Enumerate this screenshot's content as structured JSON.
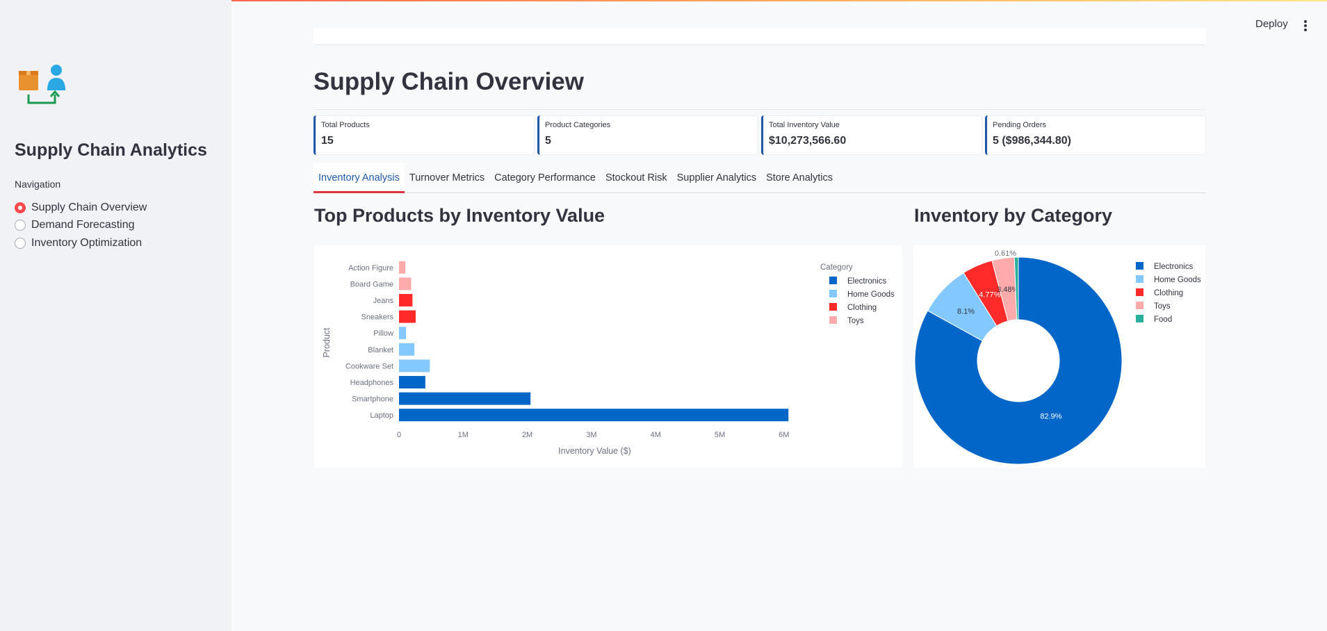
{
  "sidebar": {
    "title": "Supply Chain Analytics",
    "nav_label": "Navigation",
    "nav_items": [
      {
        "label": "Supply Chain Overview",
        "selected": true
      },
      {
        "label": "Demand Forecasting",
        "selected": false
      },
      {
        "label": "Inventory Optimization",
        "selected": false
      }
    ]
  },
  "header": {
    "deploy_label": "Deploy",
    "menu_icon": "kebab-icon"
  },
  "page": {
    "title": "Supply Chain Overview"
  },
  "metrics": [
    {
      "label": "Total Products",
      "value": "15"
    },
    {
      "label": "Product Categories",
      "value": "5"
    },
    {
      "label": "Total Inventory Value",
      "value": "$10,273,566.60"
    },
    {
      "label": "Pending Orders",
      "value": "5 ($986,344.80)"
    }
  ],
  "tabs": [
    {
      "label": "Inventory Analysis",
      "active": true
    },
    {
      "label": "Turnover Metrics",
      "active": false
    },
    {
      "label": "Category Performance",
      "active": false
    },
    {
      "label": "Stockout Risk",
      "active": false
    },
    {
      "label": "Supplier Analytics",
      "active": false
    },
    {
      "label": "Store Analytics",
      "active": false
    }
  ],
  "colors": {
    "Electronics": "#0066c8",
    "Home Goods": "#83c9ff",
    "Clothing": "#ff2b2b",
    "Toys": "#ffabab",
    "Food": "#29b09d",
    "accent": "#ff4b4b"
  },
  "chart_data": [
    {
      "type": "bar",
      "orientation": "horizontal",
      "title": "Top Products by Inventory Value",
      "xlabel": "Inventory Value ($)",
      "ylabel": "Product",
      "xlim": [
        0,
        6100000
      ],
      "xticks": [
        0,
        1000000,
        2000000,
        3000000,
        4000000,
        5000000,
        6000000
      ],
      "xtick_labels": [
        "0",
        "1M",
        "2M",
        "3M",
        "4M",
        "5M",
        "6M"
      ],
      "legend_title": "Category",
      "legend": [
        "Electronics",
        "Home Goods",
        "Clothing",
        "Toys"
      ],
      "legend_position": "top-right",
      "categories": [
        "Action Figure",
        "Board Game",
        "Jeans",
        "Sneakers",
        "Pillow",
        "Blanket",
        "Cookware Set",
        "Headphones",
        "Smartphone",
        "Laptop"
      ],
      "values": [
        100000,
        190000,
        210000,
        260000,
        110000,
        240000,
        480000,
        410000,
        2050000,
        6070000
      ],
      "series_of": [
        "Toys",
        "Toys",
        "Clothing",
        "Clothing",
        "Home Goods",
        "Home Goods",
        "Home Goods",
        "Electronics",
        "Electronics",
        "Electronics"
      ]
    },
    {
      "type": "pie",
      "hole": true,
      "title": "Inventory by Category",
      "labels": [
        "Electronics",
        "Home Goods",
        "Clothing",
        "Toys",
        "Food"
      ],
      "values": [
        82.9,
        8.1,
        4.77,
        3.48,
        0.61
      ],
      "slice_labels": [
        "82.9%",
        "8.1%",
        "4.77%",
        "3.48%",
        "0.61%"
      ],
      "legend_position": "top-right"
    }
  ]
}
